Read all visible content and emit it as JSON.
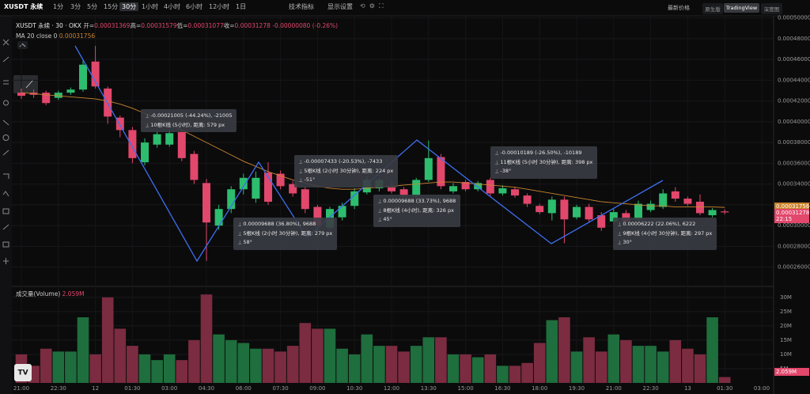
{
  "toolbar": {
    "symbol": "XUSDT 永续",
    "intervals": [
      "1分",
      "3分",
      "5分",
      "15分",
      "30分",
      "1小时",
      "4小时",
      "6小时",
      "12小时",
      "1日"
    ],
    "active_interval": 4,
    "indicators": "技术指标",
    "display_settings": "显示设置",
    "price_mode": "最新价格",
    "views": [
      "原生版",
      "TradingView",
      "深度图"
    ],
    "active_view": 1
  },
  "legend": {
    "symbol": "XUSDT 永续 · 30 · OKX",
    "items": [
      {
        "label": "开=",
        "value": "0.00031369"
      },
      {
        "label": "高=",
        "value": "0.00031579"
      },
      {
        "label": "低=",
        "value": "0.00031077"
      },
      {
        "label": "收=",
        "value": "0.00031278"
      }
    ],
    "change": "-0.00000080 (-0.26%)"
  },
  "ma_legend": {
    "label": "MA 20 close 0",
    "value": "0.00031756"
  },
  "volume_legend": {
    "label": "成交量(Volume)",
    "value": "2.059M"
  },
  "tags": {
    "ma": "0.00031756",
    "last": "0.00031278",
    "countdown": "22:15",
    "volume": "2.059M"
  },
  "measurements": [
    {
      "lines": [
        "-0.00021005 (-44.24%), -21005",
        "10根K线 (5小时), 距离: 579 px"
      ]
    },
    {
      "lines": [
        "-0.00007433 (-20.53%), -7433",
        "5根K线 (2小时 30分钟), 距离: 224 px",
        "-51°"
      ]
    },
    {
      "lines": [
        "0.00009688 (36.80%), 9688",
        "5根K线 (2小时 30分钟), 距离: 279 px",
        "58°"
      ]
    },
    {
      "lines": [
        "0.00009688 (33.73%), 9688",
        "8根K线 (4小时), 距离: 326 px",
        "45°"
      ]
    },
    {
      "lines": [
        "-0.00010189 (-26.50%), -10189",
        "11根K线 (5小时 30分钟), 距离: 398 px",
        "-38°"
      ]
    },
    {
      "lines": [
        "0.00006222 (22.06%), 6222",
        "9根K线 (4小时 30分钟), 距离: 297 px",
        "30°"
      ]
    }
  ],
  "chart_data": {
    "type": "candlestick",
    "up_color": "#2dbd6e",
    "down_color": "#e2476c",
    "volume_up_color": "#1f6e3d",
    "volume_down_color": "#7b2c40",
    "ma_color": "#c9852e",
    "grid": true,
    "categories": [
      "21:00",
      null,
      null,
      "22:30",
      null,
      null,
      "12",
      null,
      null,
      "01:30",
      null,
      null,
      "03:00",
      null,
      null,
      "04:30",
      null,
      null,
      "06:00",
      null,
      null,
      "07:30",
      null,
      null,
      "09:00",
      null,
      null,
      "10:30",
      null,
      null,
      "12:00",
      null,
      null,
      "13:30",
      null,
      null,
      "15:00",
      null,
      null,
      "16:30",
      null,
      null,
      "18:00",
      null,
      null,
      "19:30",
      null,
      null,
      "21:00",
      null,
      null,
      "22:30",
      null,
      null,
      "13",
      null,
      null,
      "01:30",
      null,
      null,
      "03:00"
    ],
    "open": [
      0.000428,
      0.000428,
      0.000428,
      0.000423,
      0.000428,
      0.000431,
      0.000458,
      0.000432,
      0.000404,
      0.000392,
      0.000361,
      0.000378,
      0.000378,
      0.00039,
      0.000369,
      0.000341,
      0.0003,
      0.000316,
      0.000335,
      0.000326,
      0.000351,
      0.00035,
      0.00034,
      0.000335,
      0.000318,
      0.000298,
      0.000308,
      0.000319,
      0.000332,
      0.000336,
      0.000338,
      0.000335,
      0.000329,
      0.000344,
      0.000366,
      0.000333,
      0.000342,
      0.000335,
      0.000344,
      0.000331,
      0.000335,
      0.000329,
      0.000319,
      0.000312,
      0.000325,
      0.000308,
      0.000318,
      0.00031,
      0.000304,
      0.000312,
      0.000306,
      0.000315,
      0.000318,
      0.000333,
      0.000326,
      0.000323,
      0.00031,
      0.00031369,
      null,
      null,
      null
    ],
    "high": [
      0.000432,
      0.000431,
      0.00043,
      0.00043,
      0.000433,
      0.000459,
      0.000473,
      0.000434,
      0.000406,
      0.000395,
      0.000384,
      0.000391,
      0.000392,
      0.000393,
      0.000372,
      0.000345,
      0.00032,
      0.000338,
      0.00035,
      0.000352,
      0.000361,
      0.000353,
      0.000343,
      0.000338,
      0.00032,
      0.000318,
      0.000322,
      0.000336,
      0.000347,
      0.000346,
      0.000342,
      0.000337,
      0.000346,
      0.000382,
      0.000369,
      0.000341,
      0.000344,
      0.000343,
      0.000346,
      0.000339,
      0.000337,
      0.000331,
      0.000321,
      0.000328,
      0.000328,
      0.00032,
      0.000321,
      0.000313,
      0.000316,
      0.000315,
      0.000324,
      0.000324,
      0.000335,
      0.000337,
      0.000328,
      0.00033,
      0.000317,
      0.00031579,
      null,
      null,
      null
    ],
    "low": [
      0.000422,
      0.000423,
      0.000416,
      0.000421,
      0.000426,
      0.000429,
      0.000432,
      0.000398,
      0.000385,
      0.00036,
      0.000358,
      0.000375,
      0.000376,
      0.000362,
      0.00034,
      0.000266,
      0.000296,
      0.000312,
      0.00033,
      0.000322,
      0.00032,
      0.000335,
      0.000328,
      0.000312,
      0.000289,
      0.000295,
      0.000305,
      0.000316,
      0.00033,
      0.000333,
      0.000331,
      0.000327,
      0.000327,
      0.000342,
      0.000335,
      0.000331,
      0.000333,
      0.000333,
      0.000328,
      0.000329,
      0.000327,
      0.000318,
      0.000311,
      0.000305,
      0.000283,
      0.000306,
      0.000303,
      0.000295,
      0.000301,
      0.000302,
      0.000303,
      0.000313,
      0.000316,
      0.000323,
      0.000319,
      0.00031,
      0.000308,
      0.00031077,
      null,
      null,
      null
    ],
    "close": [
      0.000425,
      0.000426,
      0.000418,
      0.000428,
      0.000431,
      0.000455,
      0.000434,
      0.000405,
      0.000392,
      0.000365,
      0.00038,
      0.000388,
      0.000389,
      0.000365,
      0.000344,
      0.000303,
      0.000316,
      0.000335,
      0.000346,
      0.000346,
      0.000323,
      0.000338,
      0.000331,
      0.000316,
      0.0003,
      0.000316,
      0.000319,
      0.000333,
      0.000344,
      0.000344,
      0.000333,
      0.000329,
      0.000344,
      0.000365,
      0.000338,
      0.000338,
      0.000335,
      0.000341,
      0.000331,
      0.000336,
      0.000329,
      0.000321,
      0.000313,
      0.000325,
      0.000306,
      0.000318,
      0.000306,
      0.000298,
      0.000313,
      0.000304,
      0.000321,
      0.000321,
      0.000331,
      0.000326,
      0.000321,
      0.000312,
      0.000315,
      0.00031278,
      null,
      null,
      null
    ],
    "ma": [
      0.000428,
      0.000427,
      0.000426,
      0.000425,
      0.000424,
      0.000423,
      0.000422,
      0.00042,
      0.000417,
      0.000413,
      0.000408,
      0.000403,
      0.000398,
      0.000392,
      0.000386,
      0.00038,
      0.000374,
      0.000368,
      0.000362,
      0.000357,
      0.000352,
      0.000348,
      0.000344,
      0.000341,
      0.000338,
      0.000336,
      0.000335,
      0.000335,
      0.000336,
      0.000337,
      0.000338,
      0.000339,
      0.00034,
      0.000341,
      0.000342,
      0.000342,
      0.000341,
      0.00034,
      0.000339,
      0.000338,
      0.000337,
      0.000335,
      0.000333,
      0.000331,
      0.000329,
      0.000327,
      0.000325,
      0.000323,
      0.000322,
      0.000321,
      0.00032,
      0.000319,
      0.000319,
      0.000318,
      0.000318,
      0.000318,
      0.000318,
      0.00031756,
      null,
      null,
      null
    ],
    "volume": [
      10000000,
      6000000,
      12000000,
      11000000,
      11000000,
      23000000,
      10000000,
      30000000,
      19000000,
      13000000,
      10000000,
      8000000,
      10000000,
      8000000,
      15000000,
      31000000,
      17000000,
      15000000,
      14000000,
      12000000,
      12000000,
      11000000,
      13000000,
      21000000,
      19000000,
      19000000,
      12000000,
      10000000,
      17000000,
      13000000,
      13000000,
      11000000,
      13000000,
      16000000,
      16000000,
      10000000,
      10000000,
      9000000,
      10000000,
      6000000,
      6000000,
      7000000,
      14000000,
      22000000,
      23000000,
      11000000,
      16000000,
      11000000,
      17000000,
      15000000,
      13000000,
      13000000,
      11000000,
      15000000,
      12000000,
      10000000,
      23000000,
      2059000,
      null,
      null,
      null
    ],
    "ylim": [
      0.000243,
      0.000502
    ],
    "yticks": [
      {
        "value": 0.0005,
        "label": "0.00050000"
      },
      {
        "value": 0.00048,
        "label": "0.00048000"
      },
      {
        "value": 0.00046,
        "label": "0.00046000"
      },
      {
        "value": 0.00044,
        "label": "0.00044000"
      },
      {
        "value": 0.00042,
        "label": "0.00042000"
      },
      {
        "value": 0.0004,
        "label": "0.00040000"
      },
      {
        "value": 0.00038,
        "label": "0.00038000"
      },
      {
        "value": 0.00036,
        "label": "0.00036000"
      },
      {
        "value": 0.00034,
        "label": "0.00034000"
      },
      {
        "value": 0.00032,
        "label": "0.00032000"
      },
      {
        "value": 0.0003,
        "label": "0.00030000"
      },
      {
        "value": 0.00028,
        "label": "0.00028000"
      },
      {
        "value": 0.00026,
        "label": "0.00026000"
      }
    ],
    "volume_ylim": [
      0,
      33000000
    ],
    "volume_yticks": [
      {
        "value": 5000000,
        "label": "5M"
      },
      {
        "value": 10000000,
        "label": "10M"
      },
      {
        "value": 15000000,
        "label": "15M"
      },
      {
        "value": 20000000,
        "label": "20M"
      },
      {
        "value": 25000000,
        "label": "25M"
      },
      {
        "value": 30000000,
        "label": "30M"
      }
    ]
  }
}
